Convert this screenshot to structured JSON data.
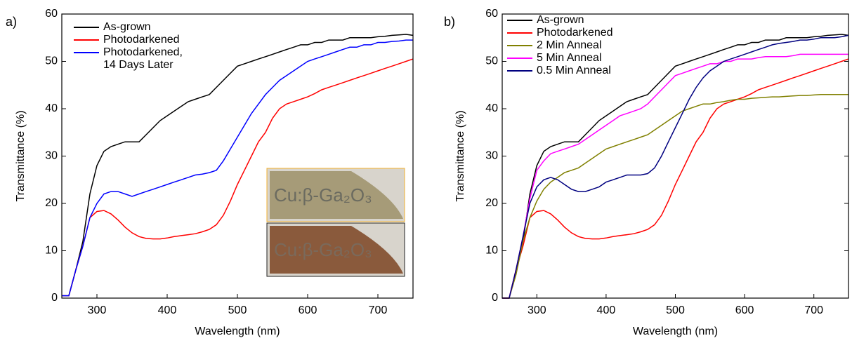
{
  "chart_data": [
    {
      "type": "line",
      "panel_label": "a)",
      "x_label": "Wavelength (nm)",
      "y_label": "Transmittance (%)",
      "x": [
        250,
        260,
        270,
        280,
        290,
        300,
        310,
        320,
        330,
        340,
        350,
        360,
        370,
        380,
        390,
        400,
        410,
        420,
        430,
        440,
        450,
        460,
        470,
        480,
        490,
        500,
        510,
        520,
        530,
        540,
        550,
        560,
        570,
        580,
        590,
        600,
        610,
        620,
        630,
        640,
        650,
        660,
        670,
        680,
        690,
        700,
        710,
        720,
        730,
        740,
        750
      ],
      "xlim": [
        250,
        750
      ],
      "xticks": [
        300,
        400,
        500,
        600,
        700
      ],
      "ylim": [
        0,
        60
      ],
      "yticks": [
        0,
        10,
        20,
        30,
        40,
        50,
        60
      ],
      "inset_labels": [
        "Cu:β-Ga₂O₃",
        "Cu:β-Ga₂O₃"
      ],
      "series": [
        {
          "name": "As-grown",
          "color": "#000000",
          "values": [
            0.5,
            0.5,
            6,
            12,
            22,
            28,
            31,
            32,
            32.5,
            33,
            33,
            33,
            34.5,
            36,
            37.5,
            38.5,
            39.5,
            40.5,
            41.5,
            42,
            42.5,
            43,
            44.5,
            46,
            47.5,
            49,
            49.5,
            50,
            50.5,
            51,
            51.5,
            52,
            52.5,
            53,
            53.5,
            53.5,
            54,
            54,
            54.5,
            54.5,
            54.5,
            55,
            55,
            55,
            55,
            55.2,
            55.3,
            55.5,
            55.6,
            55.7,
            55.5
          ]
        },
        {
          "name": "Photodarkened",
          "color": "#ff0000",
          "values": [
            0.5,
            0.5,
            6,
            11,
            17,
            18.3,
            18.5,
            17.8,
            16.5,
            15,
            13.8,
            13,
            12.6,
            12.5,
            12.5,
            12.7,
            13,
            13.2,
            13.4,
            13.6,
            14,
            14.5,
            15.5,
            17.5,
            20.5,
            24,
            27,
            30,
            33,
            35,
            38,
            40,
            41,
            41.5,
            42,
            42.5,
            43.2,
            44,
            44.5,
            45,
            45.5,
            46,
            46.5,
            47,
            47.5,
            48,
            48.5,
            49,
            49.5,
            50,
            50.5
          ]
        },
        {
          "name": "Photodarkened,\n14 Days Later",
          "color": "#0000ff",
          "values": [
            0.5,
            0.5,
            6,
            11,
            17,
            20,
            22,
            22.5,
            22.5,
            22,
            21.5,
            22,
            22.5,
            23,
            23.5,
            24,
            24.5,
            25,
            25.5,
            26,
            26.2,
            26.5,
            27,
            29,
            31.5,
            34,
            36.5,
            39,
            41,
            43,
            44.5,
            46,
            47,
            48,
            49,
            50,
            50.5,
            51,
            51.5,
            52,
            52.5,
            53,
            53,
            53.5,
            53.5,
            54,
            54,
            54.2,
            54.3,
            54.5,
            54.5
          ]
        }
      ]
    },
    {
      "type": "line",
      "panel_label": "b)",
      "x_label": "Wavelength (nm)",
      "y_label": "Transmittance (%)",
      "x": [
        250,
        260,
        270,
        280,
        290,
        300,
        310,
        320,
        330,
        340,
        350,
        360,
        370,
        380,
        390,
        400,
        410,
        420,
        430,
        440,
        450,
        460,
        470,
        480,
        490,
        500,
        510,
        520,
        530,
        540,
        550,
        560,
        570,
        580,
        590,
        600,
        610,
        620,
        630,
        640,
        650,
        660,
        670,
        680,
        690,
        700,
        710,
        720,
        730,
        740,
        750
      ],
      "xlim": [
        250,
        750
      ],
      "xticks": [
        300,
        400,
        500,
        600,
        700
      ],
      "ylim": [
        0,
        60
      ],
      "yticks": [
        0,
        10,
        20,
        30,
        40,
        50,
        60
      ],
      "series": [
        {
          "name": "As-grown",
          "color": "#000000",
          "values": [
            0,
            0,
            6,
            12,
            22,
            28,
            31,
            32,
            32.5,
            33,
            33,
            33,
            34.5,
            36,
            37.5,
            38.5,
            39.5,
            40.5,
            41.5,
            42,
            42.5,
            43,
            44.5,
            46,
            47.5,
            49,
            49.5,
            50,
            50.5,
            51,
            51.5,
            52,
            52.5,
            53,
            53.5,
            53.5,
            54,
            54,
            54.5,
            54.5,
            54.5,
            55,
            55,
            55,
            55,
            55.2,
            55.3,
            55.5,
            55.6,
            55.7,
            55.5
          ]
        },
        {
          "name": "Photodarkened",
          "color": "#ff0000",
          "values": [
            0,
            0,
            6,
            11,
            17,
            18.3,
            18.5,
            17.8,
            16.5,
            15,
            13.8,
            13,
            12.6,
            12.5,
            12.5,
            12.7,
            13,
            13.2,
            13.4,
            13.6,
            14,
            14.5,
            15.5,
            17.5,
            20.5,
            24,
            27,
            30,
            33,
            35,
            38,
            40,
            41,
            41.5,
            42,
            42.5,
            43.2,
            44,
            44.5,
            45,
            45.5,
            46,
            46.5,
            47,
            47.5,
            48,
            48.5,
            49,
            49.5,
            50,
            50.5
          ]
        },
        {
          "name": "2 Min Anneal",
          "color": "#808000",
          "values": [
            0,
            0,
            5,
            12,
            17,
            20.5,
            23,
            24.5,
            25.5,
            26.5,
            27,
            27.5,
            28.5,
            29.5,
            30.5,
            31.5,
            32,
            32.5,
            33,
            33.5,
            34,
            34.5,
            35.5,
            36.5,
            37.5,
            38.5,
            39.5,
            40,
            40.5,
            41,
            41,
            41.3,
            41.5,
            41.8,
            42,
            42,
            42.2,
            42.3,
            42.4,
            42.5,
            42.5,
            42.6,
            42.7,
            42.8,
            42.8,
            42.9,
            43,
            43,
            43,
            43,
            43
          ]
        },
        {
          "name": "5 Min Anneal",
          "color": "#ff00ff",
          "values": [
            0,
            0,
            6,
            13,
            21,
            27,
            29,
            30.5,
            31,
            31.5,
            32,
            32.5,
            33.5,
            34.5,
            35.5,
            36.5,
            37.5,
            38.5,
            39,
            39.5,
            40,
            41,
            42.5,
            44,
            45.5,
            47,
            47.5,
            48,
            48.5,
            49,
            49.5,
            49.5,
            50,
            50,
            50.5,
            50.5,
            50.5,
            50.8,
            51,
            51,
            51,
            51,
            51.2,
            51.5,
            51.5,
            51.5,
            51.5,
            51.5,
            51.5,
            51.5,
            51.5
          ]
        },
        {
          "name": "0.5 Min Anneal",
          "color": "#000080",
          "values": [
            0,
            0,
            6,
            13,
            20,
            23.5,
            25,
            25.5,
            25,
            24,
            23,
            22.5,
            22.5,
            23,
            23.5,
            24.5,
            25,
            25.5,
            26,
            26,
            26,
            26.3,
            27.5,
            30,
            33,
            36,
            39,
            42,
            44.5,
            46.5,
            48,
            49,
            50,
            50.5,
            51,
            51.5,
            52,
            52.5,
            53,
            53.5,
            53.8,
            54,
            54.2,
            54.5,
            54.5,
            54.7,
            55,
            55,
            55,
            55.2,
            55.5
          ]
        }
      ]
    }
  ]
}
